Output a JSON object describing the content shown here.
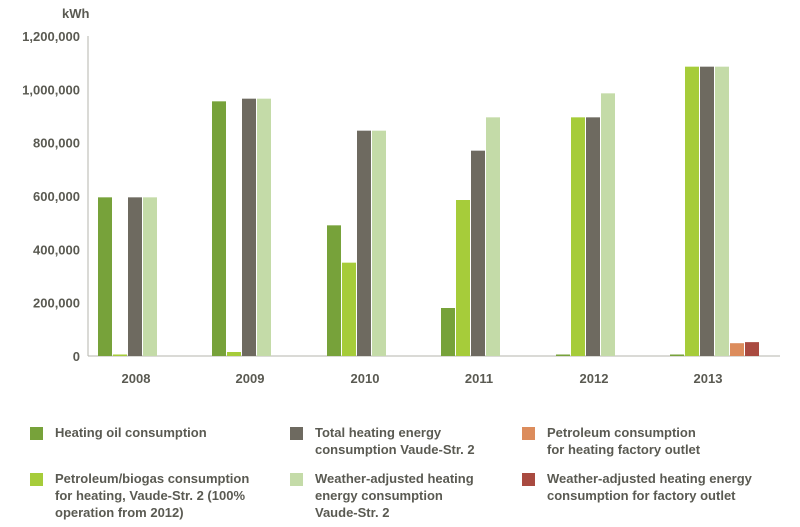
{
  "chart_data": {
    "type": "bar",
    "unit": "kWh",
    "categories": [
      "2008",
      "2009",
      "2010",
      "2011",
      "2012",
      "2013"
    ],
    "y_ticks": [
      "0",
      "200,000",
      "400,000",
      "600,000",
      "800,000",
      "1,000,000",
      "1,200,000"
    ],
    "ylim": [
      0,
      1200000
    ],
    "series": [
      {
        "name": "Heating oil consumption",
        "color": "#77a23a",
        "values": [
          595000,
          955000,
          490000,
          180000,
          0,
          0
        ]
      },
      {
        "name": "Petroleum/biogas consumption\nfor heating, Vaude-Str. 2 (100%\noperation from 2012)",
        "color": "#a6cc3a",
        "values": [
          0,
          15000,
          350000,
          585000,
          895000,
          1085000
        ]
      },
      {
        "name": "Total heating energy\nconsumption Vaude-Str. 2",
        "color": "#6e6a60",
        "values": [
          595000,
          965000,
          845000,
          770000,
          895000,
          1085000
        ]
      },
      {
        "name": "Weather-adjusted heating\nenergy consumption\nVaude-Str. 2",
        "color": "#c4dba8",
        "values": [
          595000,
          965000,
          845000,
          895000,
          985000,
          1085000
        ]
      },
      {
        "name": "Petroleum consumption\nfor heating factory outlet",
        "color": "#dc8c5c",
        "values": [
          0,
          0,
          0,
          0,
          0,
          48000
        ]
      },
      {
        "name": "Weather-adjusted heating energy\nconsumption for factory outlet",
        "color": "#a94a40",
        "values": [
          0,
          0,
          0,
          0,
          0,
          52000
        ]
      }
    ],
    "grid": false,
    "legend_position": "bottom"
  }
}
